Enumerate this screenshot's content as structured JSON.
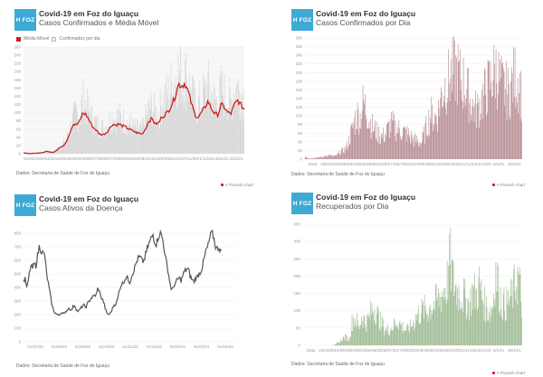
{
  "common": {
    "logo_text": "H FOZ",
    "title": "Covid-19 em Foz do Iguaçu",
    "source": "Dados: Secretaria de Saúde de Foz do Iguaçu",
    "credit": "A Flourish chart"
  },
  "panels": [
    {
      "subtitle": "Casos Confirmados e Média Móvel",
      "legend": [
        "Média Móvel",
        "Confirmados por dia"
      ]
    },
    {
      "subtitle": "Casos Confirmados por Dia"
    },
    {
      "subtitle": "Casos Ativos da Doença"
    },
    {
      "subtitle": "Recuperados por Dia"
    }
  ],
  "colors": {
    "logo": "#3fa9d6",
    "moving_average": "#cc1f1f",
    "confirmed_gray": "#d4d4d4",
    "confirmed_rose": "#b58b91",
    "active_line": "#555555",
    "recovered_green": "#9cb990"
  },
  "chart_data": [
    {
      "type": "bar+line",
      "title": "Covid-19 em Foz do Iguaçu",
      "subtitle": "Casos Confirmados e Média Móvel",
      "legend": [
        "Média Móvel",
        "Confirmados por dia"
      ],
      "ylim": [
        0,
        260
      ],
      "yticks": [
        0,
        20,
        40,
        60,
        80,
        100,
        120,
        140,
        160,
        180,
        200,
        220,
        240,
        260
      ],
      "xticks": [
        "01/04/20",
        "20/04/20",
        "15/05/20",
        "02/06/20",
        "06/07/20",
        "30/07/20",
        "23/08/20",
        "16/09/20",
        "10/10/20",
        "03/11/20",
        "27/11/20",
        "21/12/20",
        "14/01/21",
        "22/2/21"
      ],
      "series": [
        {
          "name": "Média Móvel",
          "type": "line",
          "anchors": [
            2,
            1,
            0,
            1,
            1,
            2,
            3,
            6,
            4,
            3,
            8,
            15,
            18,
            30,
            50,
            72,
            70,
            78,
            100,
            95,
            80,
            65,
            58,
            48,
            46,
            50,
            60,
            72,
            70,
            72,
            68,
            65,
            60,
            56,
            52,
            50,
            48,
            60,
            80,
            85,
            72,
            75,
            90,
            95,
            105,
            120,
            140,
            170,
            165,
            172,
            150,
            120,
            95,
            88,
            100,
            112,
            128,
            110,
            98,
            95,
            120,
            112,
            100,
            98,
            120,
            130,
            118,
            108
          ]
        },
        {
          "name": "Confirmados por dia",
          "type": "bar",
          "envelope": [
            3,
            2,
            2,
            2,
            3,
            3,
            5,
            8,
            7,
            6,
            14,
            22,
            30,
            45,
            70,
            100,
            120,
            110,
            160,
            140,
            120,
            100,
            90,
            80,
            75,
            85,
            100,
            110,
            105,
            110,
            100,
            95,
            90,
            80,
            75,
            72,
            70,
            100,
            130,
            140,
            120,
            120,
            150,
            170,
            180,
            200,
            220,
            240,
            230,
            230,
            210,
            180,
            150,
            140,
            160,
            180,
            200,
            175,
            160,
            150,
            190,
            175,
            160,
            150,
            185,
            200,
            180,
            170
          ]
        }
      ]
    },
    {
      "type": "bar",
      "title": "Covid-19 em Foz do Iguaçu",
      "subtitle": "Casos Confirmados por Dia",
      "ylim": [
        0,
        280
      ],
      "yticks": [
        0,
        20,
        40,
        60,
        80,
        100,
        120,
        140,
        160,
        180,
        200,
        220,
        240,
        260,
        280
      ],
      "xticks": [
        "Data",
        "15/04/20",
        "15/05/20",
        "04/06/20",
        "26/06/20",
        "26/07/20",
        "17/08/20",
        "10/09/20",
        "06/10/20",
        "26/10/20",
        "21/11/20",
        "14/12/20",
        "5/1/21",
        "28/1/21"
      ],
      "envelope": [
        8,
        3,
        2,
        4,
        6,
        5,
        8,
        12,
        10,
        8,
        12,
        22,
        25,
        40,
        70,
        100,
        130,
        120,
        165,
        140,
        110,
        90,
        80,
        70,
        65,
        75,
        95,
        100,
        90,
        85,
        80,
        75,
        70,
        60,
        55,
        50,
        48,
        75,
        110,
        130,
        120,
        130,
        180,
        210,
        220,
        240,
        250,
        255,
        230,
        220,
        200,
        170,
        150,
        140,
        160,
        180,
        200,
        220,
        240,
        260,
        230,
        210,
        200,
        190,
        220,
        240,
        230,
        180
      ]
    },
    {
      "type": "line",
      "title": "Covid-19 em Foz do Iguaçu",
      "subtitle": "Casos Ativos da Doença",
      "ylim": [
        0,
        800
      ],
      "yticks": [
        0,
        100,
        200,
        300,
        400,
        500,
        600,
        700,
        800
      ],
      "xticks": [
        "01/07/20",
        "01/08/20",
        "01/09/20",
        "01/10/20",
        "01/11/20",
        "01/12/20",
        "01/01/21",
        "01/02/21",
        "01/03/21"
      ],
      "values": [
        450,
        460,
        390,
        480,
        560,
        540,
        570,
        560,
        640,
        710,
        670,
        650,
        640,
        500,
        430,
        350,
        270,
        230,
        210,
        200,
        195,
        210,
        220,
        200,
        225,
        240,
        250,
        230,
        260,
        270,
        230,
        225,
        240,
        260,
        270,
        250,
        280,
        300,
        320,
        330,
        340,
        345,
        400,
        360,
        320,
        300,
        250,
        210,
        200,
        210,
        240,
        270,
        280,
        310,
        380,
        420,
        430,
        460,
        480,
        460,
        440,
        490,
        520,
        560,
        600,
        620,
        620,
        590,
        600,
        650,
        700,
        730,
        760,
        790,
        740,
        720,
        780,
        800,
        780,
        720,
        620,
        560,
        480,
        400,
        380,
        420,
        440,
        460,
        470,
        450,
        500,
        520,
        540,
        530,
        480,
        460,
        440,
        470,
        480,
        500,
        520,
        560,
        620,
        680,
        700,
        760,
        800,
        780,
        720,
        680,
        700,
        680,
        640
      ]
    },
    {
      "type": "bar",
      "title": "Covid-19 em Foz do Iguaçu",
      "subtitle": "Recuperados por Dia",
      "ylim": [
        0,
        350
      ],
      "yticks": [
        0,
        50,
        100,
        150,
        200,
        250,
        300,
        350
      ],
      "xticks": [
        "Data",
        "15/04/20",
        "15/05/20",
        "04/06/20",
        "26/06/20",
        "26/07/20",
        "17/08/20",
        "10/09/20",
        "06/10/20",
        "26/10/20",
        "21/11/20",
        "14/12/20",
        "5/1/21",
        "28/1/21"
      ],
      "envelope": [
        0,
        0,
        0,
        0,
        0,
        0,
        0,
        0,
        0,
        0,
        5,
        10,
        25,
        30,
        20,
        90,
        100,
        60,
        110,
        80,
        95,
        130,
        140,
        100,
        80,
        60,
        55,
        65,
        75,
        90,
        70,
        60,
        55,
        70,
        90,
        110,
        120,
        130,
        125,
        140,
        150,
        160,
        175,
        200,
        220,
        310,
        230,
        200,
        190,
        180,
        160,
        150,
        200,
        180,
        220,
        170,
        140,
        120,
        140,
        270,
        200,
        150,
        145,
        160,
        180,
        220,
        250,
        150
      ]
    }
  ]
}
